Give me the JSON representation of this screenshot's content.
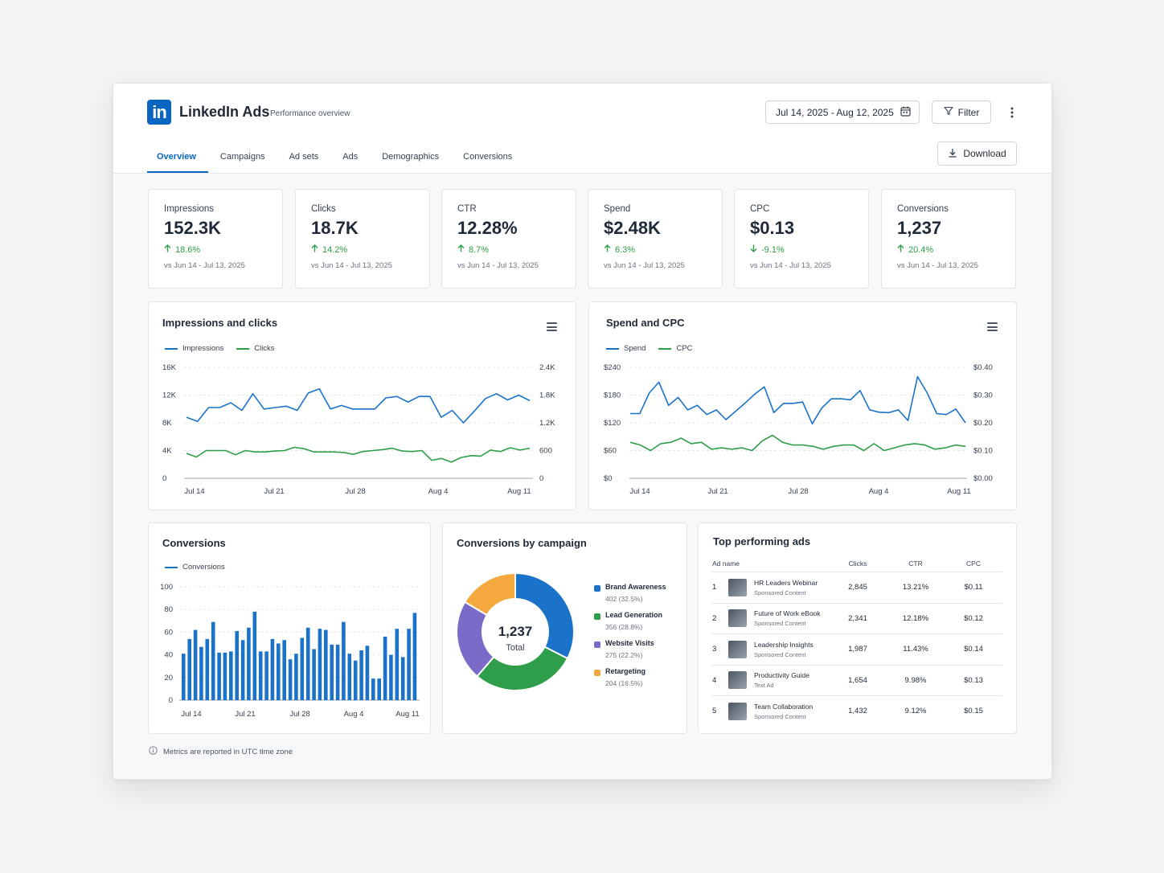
{
  "app": {
    "name": "LinkedIn Ads",
    "subtitle": "Performance overview",
    "logo_text": "in"
  },
  "header": {
    "date_range": "Jul 14, 2025 - Aug 12, 2025",
    "filter_label": "Filter",
    "download_label": "Download"
  },
  "tabs": [
    {
      "label": "Overview",
      "active": true
    },
    {
      "label": "Campaigns"
    },
    {
      "label": "Ad sets"
    },
    {
      "label": "Ads"
    },
    {
      "label": "Demographics"
    },
    {
      "label": "Conversions"
    }
  ],
  "kpis": [
    {
      "label": "Impressions",
      "value": "152.3K",
      "change": "18.6%",
      "direction": "up",
      "compare": "vs Jun 14 - Jul 13, 2025"
    },
    {
      "label": "Clicks",
      "value": "18.7K",
      "change": "14.2%",
      "direction": "up",
      "compare": "vs Jun 14 - Jul 13, 2025"
    },
    {
      "label": "CTR",
      "value": "12.28%",
      "change": "8.7%",
      "direction": "up",
      "compare": "vs Jun 14 - Jul 13, 2025"
    },
    {
      "label": "Spend",
      "value": "$2.48K",
      "change": "6.3%",
      "direction": "up",
      "compare": "vs Jun 14 - Jul 13, 2025"
    },
    {
      "label": "CPC",
      "value": "$0.13",
      "change": "-9.1%",
      "direction": "down",
      "compare": "vs Jun 14 - Jul 13, 2025"
    },
    {
      "label": "Conversions",
      "value": "1,237",
      "change": "20.4%",
      "direction": "up",
      "compare": "vs Jun 14 - Jul 13, 2025"
    }
  ],
  "colors": {
    "blue": "#1a73c9",
    "green": "#2e9e4a",
    "purple": "#7b6ac8",
    "orange": "#f5a83d",
    "accent": "#0a66c2"
  },
  "chart_data": [
    {
      "type": "line",
      "title": "Impressions and clicks",
      "x_ticks": [
        "Jul 14",
        "Jul 21",
        "Jul 28",
        "Aug 4",
        "Aug 11"
      ],
      "y_ticks": [
        "16K",
        "12K",
        "8K",
        "4K",
        "0"
      ],
      "y2_ticks": [
        "2.4K",
        "1.8K",
        "1.2K",
        "600",
        "0"
      ],
      "ylim": [
        0,
        16000
      ],
      "y2lim": [
        0,
        2400
      ],
      "series": [
        {
          "name": "Impressions",
          "axis": "left",
          "color": "#1a73c9",
          "values": [
            8800,
            8200,
            10200,
            10200,
            10900,
            9800,
            12200,
            10000,
            10200,
            10400,
            9800,
            12300,
            12900,
            10000,
            10500,
            10000,
            10000,
            10000,
            11600,
            11800,
            11000,
            11800,
            11800,
            8800,
            9800,
            8000,
            9700,
            11500,
            12200,
            11300,
            12000,
            11200
          ]
        },
        {
          "name": "Clicks",
          "axis": "right",
          "color": "#2e9e4a",
          "values": [
            540,
            460,
            600,
            600,
            600,
            510,
            600,
            570,
            570,
            590,
            600,
            670,
            640,
            570,
            570,
            570,
            560,
            520,
            580,
            600,
            620,
            650,
            590,
            580,
            600,
            390,
            430,
            350,
            450,
            490,
            480,
            610,
            580,
            660,
            610,
            650
          ]
        }
      ]
    },
    {
      "type": "line",
      "title": "Spend and CPC",
      "x_ticks": [
        "Jul 14",
        "Jul 21",
        "Jul 28",
        "Aug 4",
        "Aug 11"
      ],
      "y_ticks": [
        "$240",
        "$180",
        "$120",
        "$60",
        "$0"
      ],
      "y2_ticks": [
        "$0.40",
        "$0.30",
        "$0.20",
        "$0.10",
        "$0.00"
      ],
      "ylim": [
        0,
        240
      ],
      "y2lim": [
        0,
        0.4
      ],
      "series": [
        {
          "name": "Spend",
          "axis": "left",
          "color": "#1a73c9",
          "values": [
            140,
            140,
            185,
            208,
            158,
            175,
            148,
            158,
            138,
            148,
            127,
            145,
            163,
            182,
            198,
            142,
            162,
            162,
            165,
            118,
            152,
            172,
            172,
            170,
            190,
            148,
            143,
            142,
            148,
            125,
            220,
            185,
            140,
            138,
            150,
            120
          ]
        },
        {
          "name": "CPC",
          "axis": "right",
          "color": "#2e9e4a",
          "values": [
            0.13,
            0.12,
            0.1,
            0.125,
            0.13,
            0.145,
            0.125,
            0.13,
            0.105,
            0.11,
            0.105,
            0.11,
            0.1,
            0.135,
            0.155,
            0.13,
            0.12,
            0.12,
            0.115,
            0.105,
            0.115,
            0.12,
            0.12,
            0.1,
            0.125,
            0.1,
            0.11,
            0.12,
            0.125,
            0.12,
            0.105,
            0.11,
            0.12,
            0.115
          ]
        }
      ]
    },
    {
      "type": "bar",
      "title": "Conversions",
      "x_ticks": [
        "Jul 14",
        "Jul 21",
        "Jul 28",
        "Aug 4",
        "Aug 11"
      ],
      "y_ticks": [
        "100",
        "80",
        "60",
        "40",
        "20",
        "0"
      ],
      "ylim": [
        0,
        100
      ],
      "series": [
        {
          "name": "Conversions",
          "color": "#1a73c9",
          "values": [
            41,
            54,
            62,
            47,
            54,
            69,
            42,
            42,
            43,
            61,
            53,
            64,
            78,
            43,
            43,
            54,
            50,
            53,
            36,
            41,
            55,
            64,
            45,
            63,
            62,
            49,
            49,
            69,
            41,
            35,
            44,
            48,
            19,
            19,
            56,
            40,
            63,
            38,
            63,
            77
          ]
        }
      ]
    },
    {
      "type": "pie",
      "title": "Conversions by campaign",
      "center_value": "1,237",
      "center_label": "Total",
      "slices": [
        {
          "name": "Brand Awareness",
          "value": 402,
          "label": "402 (32.5%)",
          "color": "#1a73c9"
        },
        {
          "name": "Lead Generation",
          "value": 356,
          "label": "356 (28.8%)",
          "color": "#2e9e4a"
        },
        {
          "name": "Website Visits",
          "value": 275,
          "label": "275 (22.2%)",
          "color": "#7b6ac8"
        },
        {
          "name": "Retargeting",
          "value": 204,
          "label": "204 (16.5%)",
          "color": "#f5a83d"
        }
      ]
    }
  ],
  "top_ads": {
    "title": "Top performing ads",
    "columns": {
      "name": "Ad name",
      "clicks": "Clicks",
      "ctr": "CTR",
      "cpc": "CPC"
    },
    "rows": [
      {
        "rank": "1",
        "name": "HR Leaders Webinar",
        "type": "Sponsored Content",
        "clicks": "2,845",
        "ctr": "13.21%",
        "cpc": "$0.11"
      },
      {
        "rank": "2",
        "name": "Future of Work eBook",
        "type": "Sponsored Content",
        "clicks": "2,341",
        "ctr": "12.18%",
        "cpc": "$0.12"
      },
      {
        "rank": "3",
        "name": "Leadership Insights",
        "type": "Sponsored Content",
        "clicks": "1,987",
        "ctr": "11.43%",
        "cpc": "$0.14"
      },
      {
        "rank": "4",
        "name": "Productivity Guide",
        "type": "Text Ad",
        "clicks": "1,654",
        "ctr": "9.98%",
        "cpc": "$0.13"
      },
      {
        "rank": "5",
        "name": "Team Collaboration",
        "type": "Sponsored Content",
        "clicks": "1,432",
        "ctr": "9.12%",
        "cpc": "$0.15"
      }
    ]
  },
  "footer": {
    "note": "Metrics are reported in UTC time zone"
  }
}
